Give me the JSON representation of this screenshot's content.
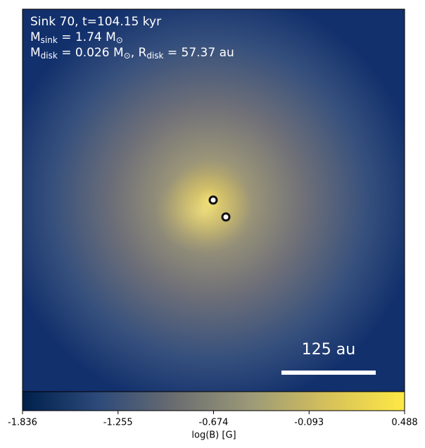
{
  "chart_data": {
    "type": "image",
    "annotation_lines": [
      [
        {
          "text": "Sink 70, t=104.15 kyr"
        }
      ],
      [
        {
          "text": "M"
        },
        {
          "sub": "sink"
        },
        {
          "text": " = 1.74 M"
        },
        {
          "sub": "⊙"
        }
      ],
      [
        {
          "text": "M"
        },
        {
          "sub": "disk"
        },
        {
          "text": " = 0.026 M"
        },
        {
          "sub": "⊙"
        },
        {
          "text": ", R"
        },
        {
          "sub": "disk"
        },
        {
          "text": " = 57.37 au"
        }
      ]
    ],
    "scale_bar_label": "125 au",
    "colorbar": {
      "label": "log(B) [G]",
      "clim": [
        -1.836,
        0.488
      ],
      "ticks": [
        -1.836,
        -1.255,
        -0.674,
        -0.093,
        0.488
      ],
      "colors": [
        "#00204c",
        "#2d4a7a",
        "#6b6d70",
        "#9c9a78",
        "#d6c15a",
        "#ffe945"
      ]
    }
  }
}
